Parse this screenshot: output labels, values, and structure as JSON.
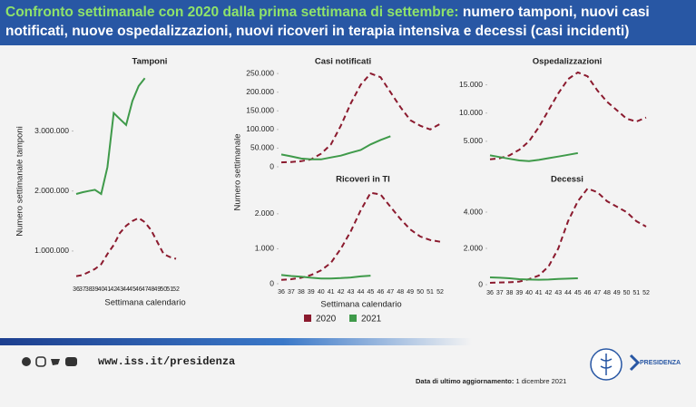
{
  "header": {
    "title_lead": "Confronto settimanale con 2020 dalla prima settimana di settembre:",
    "title_rest": "numero tamponi, nuovi casi notificati, nuove ospedalizzazioni, nuovi ricoveri in terapia intensiva e decessi (casi incidenti)"
  },
  "chart_data": [
    {
      "type": "line",
      "title": "Tamponi",
      "ylabel": "Numero settimanale tamponi",
      "xlabel": "Settimana calendario",
      "categories": [
        "36",
        "37",
        "38",
        "39",
        "40",
        "41",
        "42",
        "43",
        "44",
        "45",
        "46",
        "47",
        "48",
        "49",
        "50",
        "51",
        "52"
      ],
      "ylim": [
        500000,
        3900000
      ],
      "yticks": [
        {
          "value": 1000000,
          "label": "1.000.000"
        },
        {
          "value": 2000000,
          "label": "2.000.000"
        },
        {
          "value": 3000000,
          "label": "3.000.000"
        }
      ],
      "series": [
        {
          "name": "2020",
          "color": "#8b1a2e",
          "dashed": true,
          "values": [
            580000,
            600000,
            650000,
            700000,
            780000,
            950000,
            1100000,
            1300000,
            1420000,
            1500000,
            1550000,
            1480000,
            1350000,
            1150000,
            950000,
            900000,
            870000
          ]
        },
        {
          "name": "2021",
          "color": "#3f9a4a",
          "dashed": false,
          "values": [
            1950000,
            1980000,
            2000000,
            2020000,
            1950000,
            2400000,
            3300000,
            3200000,
            3100000,
            3500000,
            3750000,
            3880000,
            null,
            null,
            null,
            null,
            null
          ]
        }
      ]
    },
    {
      "type": "line",
      "title": "Casi notificati",
      "ylabel": "Numero settimanale",
      "categories": [
        null,
        null,
        null,
        null,
        null,
        null,
        null,
        null,
        null,
        null,
        null,
        null,
        null,
        null,
        null,
        null,
        null
      ],
      "ylim": [
        0,
        260000
      ],
      "yticks": [
        0,
        {
          "value": 50000,
          "label": "50.000"
        },
        {
          "value": 100000,
          "label": "100.000"
        },
        {
          "value": 150000,
          "label": "150.000"
        },
        {
          "value": 200000,
          "label": "200.000"
        },
        {
          "value": 250000,
          "label": "250.000"
        }
      ],
      "series": [
        {
          "color": "#8b1a2e",
          "dashed": true,
          "values": [
            12000,
            13000,
            15000,
            20000,
            35000,
            60000,
            110000,
            170000,
            220000,
            250000,
            240000,
            200000,
            160000,
            125000,
            110000,
            100000,
            115000
          ]
        },
        {
          "color": "#3f9a4a",
          "dashed": false,
          "values": [
            33000,
            28000,
            22000,
            20000,
            20000,
            25000,
            30000,
            38000,
            45000,
            60000,
            72000,
            82000,
            null,
            null,
            null,
            null,
            null
          ]
        }
      ]
    },
    {
      "type": "line",
      "title": "Ospedalizzazioni",
      "categories": [
        null,
        null,
        null,
        null,
        null,
        null,
        null,
        null,
        null,
        null,
        null,
        null,
        null,
        null,
        null,
        null,
        null
      ],
      "ylim": [
        0,
        17500
      ],
      "yticks": [
        {
          "value": 5000,
          "label": "5.000"
        },
        {
          "value": 10000,
          "label": "10.000"
        },
        {
          "value": 15000,
          "label": "15.000"
        }
      ],
      "series": [
        {
          "color": "#8b1a2e",
          "dashed": true,
          "values": [
            1800,
            2000,
            2500,
            3500,
            5000,
            7500,
            10500,
            13500,
            16000,
            17200,
            16500,
            14000,
            12000,
            10500,
            9000,
            8500,
            9200
          ]
        },
        {
          "color": "#3f9a4a",
          "dashed": false,
          "values": [
            2500,
            2200,
            1900,
            1600,
            1500,
            1700,
            2000,
            2300,
            2600,
            2900,
            null,
            null,
            null,
            null,
            null,
            null,
            null
          ]
        }
      ]
    },
    {
      "type": "line",
      "title": "Ricoveri in TI",
      "xlabel": "Settimana calendario",
      "categories": [
        "36",
        "37",
        "38",
        "39",
        "40",
        "41",
        "42",
        "43",
        "44",
        "45",
        "46",
        "47",
        "48",
        "49",
        "50",
        "51",
        "52"
      ],
      "ylim": [
        0,
        2800
      ],
      "yticks": [
        0,
        {
          "value": 1000,
          "label": "1.000"
        },
        {
          "value": 2000,
          "label": "2.000"
        }
      ],
      "series": [
        {
          "color": "#8b1a2e",
          "dashed": true,
          "values": [
            110,
            130,
            170,
            250,
            380,
            600,
            1000,
            1500,
            2100,
            2600,
            2550,
            2200,
            1850,
            1550,
            1350,
            1250,
            1200
          ]
        },
        {
          "color": "#3f9a4a",
          "dashed": false,
          "values": [
            250,
            220,
            200,
            170,
            150,
            150,
            160,
            180,
            210,
            230,
            null,
            null,
            null,
            null,
            null,
            null,
            null
          ]
        }
      ]
    },
    {
      "type": "line",
      "title": "Decessi",
      "categories": [
        "36",
        "37",
        "38",
        "39",
        "40",
        "41",
        "42",
        "43",
        "44",
        "45",
        "46",
        "47",
        "48",
        "49",
        "50",
        "51",
        "52"
      ],
      "ylim": [
        0,
        5600
      ],
      "yticks": [
        0,
        {
          "value": 2000,
          "label": "2.000"
        },
        {
          "value": 4000,
          "label": "4.000"
        }
      ],
      "series": [
        {
          "color": "#8b1a2e",
          "dashed": true,
          "values": [
            100,
            120,
            130,
            170,
            300,
            500,
            1000,
            2000,
            3500,
            4600,
            5300,
            5100,
            4600,
            4300,
            4000,
            3500,
            3200
          ]
        },
        {
          "color": "#3f9a4a",
          "dashed": false,
          "values": [
            400,
            380,
            350,
            300,
            280,
            270,
            280,
            310,
            330,
            350,
            null,
            null,
            null,
            null,
            null,
            null,
            null
          ]
        }
      ]
    }
  ],
  "footer": {
    "url": "www.iss.it/presidenza",
    "update_label": "Data di ultimo aggiornamento:",
    "update_date": "1 dicembre 2021",
    "brand": "PRESIDENZA"
  }
}
